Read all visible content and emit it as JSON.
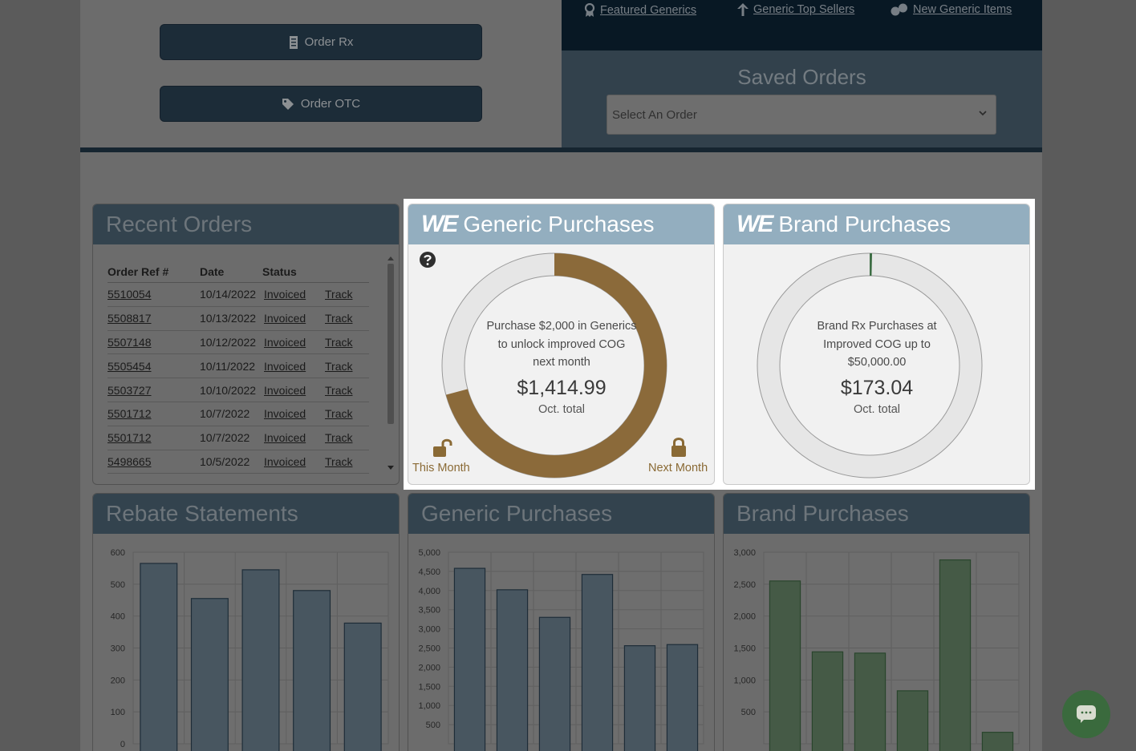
{
  "actions": {
    "order_rx": "Order Rx",
    "order_otc": "Order OTC"
  },
  "nav": {
    "featured_generics": "Featured Generics",
    "generic_top_sellers": "Generic Top Sellers",
    "new_generic_items": "New Generic Items"
  },
  "saved_orders": {
    "title": "Saved Orders",
    "placeholder": "Select An Order"
  },
  "recent_orders": {
    "title": "Recent Orders",
    "headers": [
      "Order Ref #",
      "Date",
      "Status"
    ],
    "rows": [
      {
        "ref": "5510054",
        "date": "10/14/2022",
        "status": "Invoiced",
        "track": "Track"
      },
      {
        "ref": "5508817",
        "date": "10/13/2022",
        "status": "Invoiced",
        "track": "Track"
      },
      {
        "ref": "5507148",
        "date": "10/12/2022",
        "status": "Invoiced",
        "track": "Track"
      },
      {
        "ref": "5505454",
        "date": "10/11/2022",
        "status": "Invoiced",
        "track": "Track"
      },
      {
        "ref": "5503727",
        "date": "10/10/2022",
        "status": "Invoiced",
        "track": "Track"
      },
      {
        "ref": "5501712",
        "date": "10/7/2022",
        "status": "Invoiced",
        "track": "Track"
      },
      {
        "ref": "5501712",
        "date": "10/7/2022",
        "status": "Invoiced",
        "track": "Track"
      },
      {
        "ref": "5498665",
        "date": "10/5/2022",
        "status": "Invoiced",
        "track": "Track"
      }
    ]
  },
  "generic_card": {
    "logo": "WE",
    "title": "Generic Purchases",
    "line1": "Purchase $2,000 in Generics",
    "line2": "to unlock improved COG",
    "line3": "next month",
    "amount": "$1,414.99",
    "sub": "Oct. total",
    "this_month": "This Month",
    "next_month": "Next Month",
    "progress": 0.7075,
    "color": "#8b6a3a"
  },
  "brand_card": {
    "logo": "WE",
    "title": "Brand Purchases",
    "line1": "Brand Rx Purchases at",
    "line2": "Improved COG up to",
    "line3": "$50,000.00",
    "amount": "$173.04",
    "sub": "Oct. total",
    "progress": 0.0035,
    "color": "#3e6e45"
  },
  "rebate_title": "Rebate Statements",
  "generic_chart_title": "Generic Purchases",
  "brand_chart_title": "Brand Purchases",
  "chart_data": [
    {
      "type": "bar",
      "title": "Rebate Statements",
      "ylim": [
        0,
        600
      ],
      "yticks": [
        0,
        100,
        200,
        300,
        400,
        500,
        600
      ],
      "values": [
        565,
        455,
        545,
        480,
        378
      ],
      "color": "#6f8494"
    },
    {
      "type": "bar",
      "title": "Generic Purchases",
      "ylim": [
        0,
        5000
      ],
      "yticks": [
        500,
        1000,
        1500,
        2000,
        2500,
        3000,
        3500,
        4000,
        4500,
        5000
      ],
      "values": [
        4580,
        4020,
        3300,
        4420,
        2560,
        2590
      ],
      "color": "#6f8494"
    },
    {
      "type": "bar",
      "title": "Brand Purchases",
      "ylim": [
        0,
        3000
      ],
      "yticks": [
        500,
        1000,
        1500,
        2000,
        2500,
        3000
      ],
      "values": [
        2550,
        1440,
        1420,
        830,
        2880,
        180
      ],
      "color": "#6a8a6c"
    }
  ]
}
